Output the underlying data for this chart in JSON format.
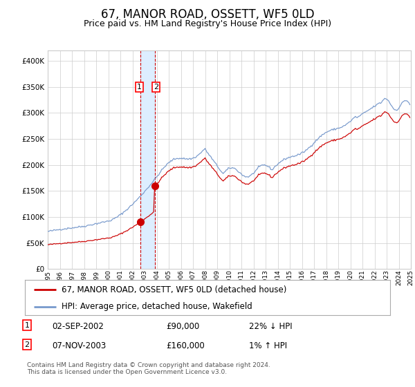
{
  "title": "67, MANOR ROAD, OSSETT, WF5 0LD",
  "subtitle": "Price paid vs. HM Land Registry's House Price Index (HPI)",
  "sale1_date": "02-SEP-2002",
  "sale1_price": 90000,
  "sale1_label": "1",
  "sale1_hpi_diff": "22% ↓ HPI",
  "sale2_date": "07-NOV-2003",
  "sale2_price": 160000,
  "sale2_label": "2",
  "sale2_hpi_diff": "1% ↑ HPI",
  "legend_line1": "67, MANOR ROAD, OSSETT, WF5 0LD (detached house)",
  "legend_line2": "HPI: Average price, detached house, Wakefield",
  "footnote": "Contains HM Land Registry data © Crown copyright and database right 2024.\nThis data is licensed under the Open Government Licence v3.0.",
  "hpi_color": "#7799cc",
  "price_color": "#cc0000",
  "marker_color": "#cc0000",
  "vline_color": "#cc0000",
  "vband_color": "#ddeeff",
  "grid_color": "#cccccc",
  "background_color": "#ffffff",
  "ylim": [
    0,
    420000
  ],
  "yticks": [
    0,
    50000,
    100000,
    150000,
    200000,
    250000,
    300000,
    350000,
    400000
  ],
  "title_fontsize": 12,
  "subtitle_fontsize": 9,
  "axis_fontsize": 7
}
